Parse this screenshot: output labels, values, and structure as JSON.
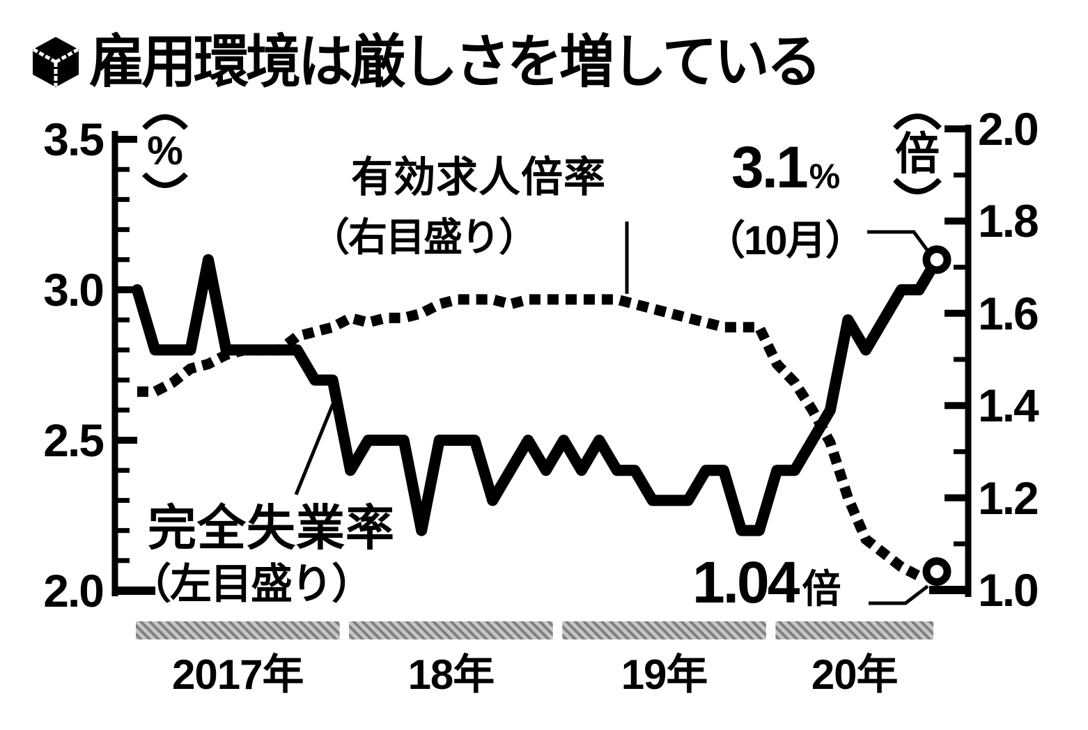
{
  "title": {
    "text": "雇用環境は厳しさを増している"
  },
  "chart_data": {
    "type": "line",
    "x": {
      "start": "2017-01",
      "end": "2020-10",
      "interval": "month",
      "n_points": 46
    },
    "years": [
      {
        "label": "2017年",
        "from_month": 0,
        "to_month": 11
      },
      {
        "label": "18年",
        "from_month": 12,
        "to_month": 23
      },
      {
        "label": "19年",
        "from_month": 24,
        "to_month": 35
      },
      {
        "label": "20年",
        "from_month": 36,
        "to_month": 45
      }
    ],
    "left_axis": {
      "unit": "%",
      "min": 2.0,
      "max": 3.5,
      "minor_step": 0.1,
      "major_ticks": [
        {
          "label": "3.5",
          "value": 3.5
        },
        {
          "label": "3.0",
          "value": 3.0
        },
        {
          "label": "2.5",
          "value": 2.5
        },
        {
          "label": "2.0",
          "value": 2.0
        }
      ]
    },
    "right_axis": {
      "unit": "倍",
      "min": 1.0,
      "max": 2.0,
      "minor_step": 0.1,
      "major_ticks": [
        {
          "label": "2.0",
          "value": 2.0
        },
        {
          "label": "1.8",
          "value": 1.8
        },
        {
          "label": "1.6",
          "value": 1.6
        },
        {
          "label": "1.4",
          "value": 1.4
        },
        {
          "label": "1.2",
          "value": 1.2
        },
        {
          "label": "1.0",
          "value": 1.0
        }
      ]
    },
    "series": [
      {
        "name": "完全失業率",
        "scale_note": "（左目盛り）",
        "axis": "left",
        "style": "solid",
        "values": [
          3.0,
          2.8,
          2.8,
          2.8,
          3.1,
          2.8,
          2.8,
          2.8,
          2.8,
          2.8,
          2.7,
          2.7,
          2.4,
          2.5,
          2.5,
          2.5,
          2.2,
          2.5,
          2.5,
          2.5,
          2.3,
          2.4,
          2.5,
          2.4,
          2.5,
          2.4,
          2.5,
          2.4,
          2.4,
          2.3,
          2.3,
          2.3,
          2.4,
          2.4,
          2.2,
          2.2,
          2.4,
          2.4,
          2.5,
          2.6,
          2.9,
          2.8,
          2.9,
          3.0,
          3.0,
          3.1
        ]
      },
      {
        "name": "有効求人倍率",
        "scale_note": "（右目盛り）",
        "axis": "right",
        "style": "dotted",
        "values": [
          1.43,
          1.43,
          1.45,
          1.48,
          1.49,
          1.51,
          1.52,
          1.52,
          1.52,
          1.55,
          1.56,
          1.57,
          1.59,
          1.58,
          1.59,
          1.59,
          1.6,
          1.62,
          1.63,
          1.63,
          1.63,
          1.62,
          1.63,
          1.63,
          1.63,
          1.63,
          1.63,
          1.63,
          1.62,
          1.61,
          1.6,
          1.59,
          1.58,
          1.57,
          1.57,
          1.57,
          1.49,
          1.45,
          1.39,
          1.32,
          1.2,
          1.11,
          1.08,
          1.05,
          1.03,
          1.04
        ]
      }
    ],
    "annotations": {
      "unemployment_latest": {
        "value": "3.1",
        "unit": "%",
        "period": "（10月）"
      },
      "job_ratio_latest": {
        "value": "1.04",
        "unit": "倍"
      }
    },
    "grid": false,
    "legend_position": "inline-labels"
  },
  "colors": {
    "ink": "#000000",
    "paper": "#ffffff",
    "year_bar_gray": "#a6a6a6"
  }
}
